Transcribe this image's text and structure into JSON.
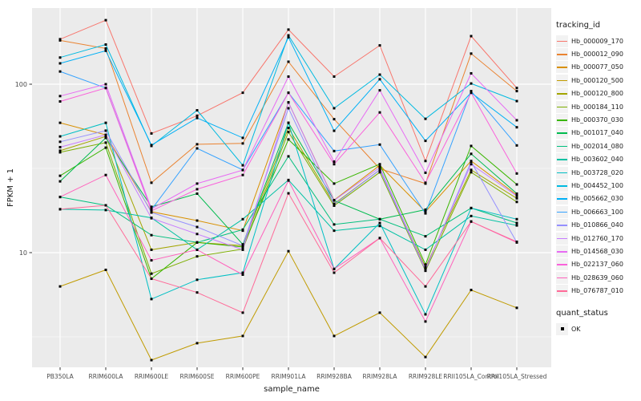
{
  "figure": {
    "panel_background": "#EBEBEB",
    "gridline_color": "#FFFFFF",
    "tick_label_color": "#4D4D4D",
    "axis_title_color": "#1A1A1A",
    "legend_key_fill": "#F2F2F2",
    "point_color": "#000000"
  },
  "axes": {
    "x_title": "sample_name",
    "y_title": "FPKM + 1",
    "y_tick_labels": [
      "100",
      "10"
    ]
  },
  "legend": {
    "title": "tracking_id"
  },
  "quant_legend": {
    "title": "quant_status",
    "items": [
      {
        "label": "OK",
        "marker": "black-square"
      }
    ]
  },
  "chart_data": {
    "type": "line",
    "title": "",
    "xlabel": "sample_name",
    "ylabel": "FPKM + 1",
    "y_scale": "log10",
    "y_major_ticks": [
      10,
      100
    ],
    "y_minor_ticks": [
      3.162,
      31.62
    ],
    "ylim": [
      2.0,
      290
    ],
    "grid": true,
    "legend_position": "right",
    "point_marker": "filled-square",
    "point_color": "#000000",
    "categories": [
      "PB350LA",
      "RRIM600LA",
      "RRIM600LE",
      "RRIM600SE",
      "RRIM600PE",
      "RRIM901LA",
      "RRIM928BA",
      "RRIM928LA",
      "RRIM928LE",
      "RRII105LA_Control",
      "RRII105LA_Stressed"
    ],
    "series": [
      {
        "name": "Hb_000009_170",
        "color": "#F8766D",
        "values": [
          185,
          240,
          51,
          65,
          89,
          211,
          111,
          170,
          35,
          193,
          95
        ]
      },
      {
        "name": "Hb_000012_090",
        "color": "#EA8331",
        "values": [
          182,
          163,
          26,
          44,
          44.5,
          136,
          62,
          31.5,
          25.7,
          152,
          91
        ]
      },
      {
        "name": "Hb_000077_050",
        "color": "#D89000",
        "values": [
          59,
          50,
          17.5,
          15.5,
          13.5,
          78,
          20.5,
          33,
          17.5,
          35,
          22
        ]
      },
      {
        "name": "Hb_000120_500",
        "color": "#C09B00",
        "values": [
          6.3,
          7.9,
          2.3,
          2.9,
          3.2,
          10.2,
          3.2,
          4.4,
          2.4,
          6.0,
          4.7
        ]
      },
      {
        "name": "Hb_000120_800",
        "color": "#A3A500",
        "values": [
          40.3,
          49,
          10.4,
          11.5,
          11,
          55,
          19.5,
          31,
          8.2,
          31,
          21
        ]
      },
      {
        "name": "Hb_000184_110",
        "color": "#7CAE00",
        "values": [
          39.4,
          45,
          7.5,
          9.5,
          10.5,
          52,
          19,
          30,
          7.8,
          30,
          20
        ]
      },
      {
        "name": "Hb_000370_030",
        "color": "#39B600",
        "values": [
          28.6,
          42,
          7.0,
          11.5,
          10.8,
          47,
          25.7,
          33.5,
          8.5,
          43,
          25.4
        ]
      },
      {
        "name": "Hb_001017_040",
        "color": "#00BB4E",
        "values": [
          26.5,
          48,
          18.7,
          22.4,
          11.2,
          59,
          20.4,
          15.8,
          18,
          38.6,
          22.4
        ]
      },
      {
        "name": "Hb_002014_080",
        "color": "#00BF7D",
        "values": [
          21.4,
          19.1,
          12.7,
          11.5,
          13.7,
          37.3,
          14.7,
          15.8,
          12.5,
          18.4,
          15
        ]
      },
      {
        "name": "Hb_003602_040",
        "color": "#00C1A3",
        "values": [
          18.1,
          17.9,
          16.1,
          10.4,
          15.8,
          27,
          13.5,
          14.4,
          10.4,
          16.5,
          14.5
        ]
      },
      {
        "name": "Hb_003728_020",
        "color": "#00BFC4",
        "values": [
          49,
          59,
          5.3,
          6.9,
          7.6,
          59,
          8.0,
          15,
          4.3,
          18.4,
          15.8
        ]
      },
      {
        "name": "Hb_004452_100",
        "color": "#00BAE0",
        "values": [
          144,
          172,
          43,
          70,
          33,
          195,
          72,
          114,
          62.3,
          101,
          79.4
        ]
      },
      {
        "name": "Hb_005662_030",
        "color": "#00B0F6",
        "values": [
          133,
          158,
          43.5,
          63,
          48,
          190,
          52.9,
          107,
          46.1,
          89,
          55.5
        ]
      },
      {
        "name": "Hb_006663_100",
        "color": "#35A2FF",
        "values": [
          119,
          95,
          18,
          41.6,
          31,
          89,
          40.1,
          43.8,
          17.1,
          91,
          43.3
        ]
      },
      {
        "name": "Hb_010866_040",
        "color": "#9590FF",
        "values": [
          45.5,
          53,
          17.3,
          14.2,
          11,
          72,
          19.3,
          31,
          7.9,
          34.7,
          11.5
        ]
      },
      {
        "name": "Hb_012760_170",
        "color": "#C77CFF",
        "values": [
          42.3,
          50,
          16,
          12.9,
          10.4,
          78,
          20.4,
          32,
          8.0,
          33.5,
          21.7
        ]
      },
      {
        "name": "Hb_014568_030",
        "color": "#E76BF3",
        "values": [
          85,
          100,
          18.2,
          25.7,
          30.9,
          111,
          34.7,
          92,
          29.8,
          116,
          61.1
        ]
      },
      {
        "name": "Hb_022137_060",
        "color": "#FA62DB",
        "values": [
          79,
          95,
          17.7,
          23.8,
          28.9,
          89,
          33.5,
          68,
          26,
          89,
          29.5
        ]
      },
      {
        "name": "Hb_028639_060",
        "color": "#FF62BC",
        "values": [
          21.4,
          28.9,
          9.0,
          10.4,
          7.4,
          26.8,
          8.0,
          12.2,
          3.9,
          15.3,
          11.5
        ]
      },
      {
        "name": "Hb_076787_010",
        "color": "#FF6A98",
        "values": [
          18.1,
          19.1,
          7.0,
          5.8,
          4.4,
          22.5,
          7.6,
          12.2,
          6.3,
          15.3,
          11.6
        ]
      }
    ]
  }
}
